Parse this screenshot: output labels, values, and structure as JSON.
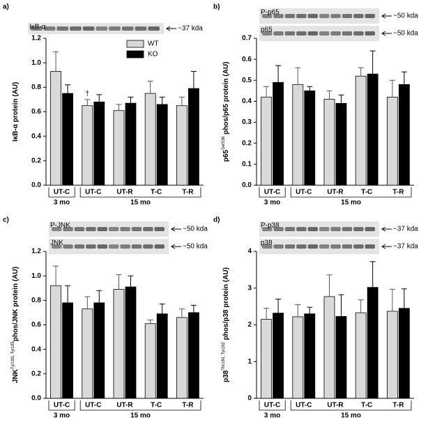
{
  "chart_data": [
    {
      "type": "bar",
      "panel_label": "a)",
      "ylabel": {
        "main": "IκB-α protein (AU)"
      },
      "categories": [
        "UT-C",
        "UT-C",
        "UT-R",
        "T-C",
        "T-R"
      ],
      "groups": [
        "3 mo",
        "15 mo"
      ],
      "series": [
        {
          "name": "WT",
          "color": "#d9d9d9",
          "values": [
            0.93,
            0.65,
            0.61,
            0.75,
            0.65
          ],
          "errors": [
            0.16,
            0.05,
            0.05,
            0.1,
            0.07
          ]
        },
        {
          "name": "KO",
          "color": "#000000",
          "values": [
            0.75,
            0.68,
            0.67,
            0.66,
            0.79
          ],
          "errors": [
            0.07,
            0.06,
            0.05,
            0.06,
            0.14
          ]
        }
      ],
      "ylim": [
        0,
        1.2
      ],
      "yticks": [
        {
          "value": 0,
          "label": "0.0"
        },
        0.2,
        0.4,
        0.6,
        0.8,
        {
          "value": 1,
          "label": "1.0"
        },
        1.2
      ],
      "legend": "top-right",
      "annotation": "†",
      "blot": {
        "labels": [
          "IκB-α"
        ],
        "sizes": [
          "~37 kda"
        ]
      }
    },
    {
      "type": "bar",
      "panel_label": "b)",
      "ylabel": {
        "main": "p65",
        "sup": "Ser536",
        "rest": " phos/p65 protein (AU)"
      },
      "categories": [
        "UT-C",
        "UT-C",
        "UT-R",
        "T-C",
        "T-R"
      ],
      "groups": [
        "3 mo",
        "15 mo"
      ],
      "series": [
        {
          "color": "#d9d9d9",
          "values": [
            0.42,
            0.48,
            0.41,
            0.52,
            0.42
          ],
          "errors": [
            0.05,
            0.08,
            0.04,
            0.04,
            0.08
          ]
        },
        {
          "color": "#000000",
          "values": [
            0.49,
            0.45,
            0.39,
            0.53,
            0.48
          ],
          "errors": [
            0.08,
            0.02,
            0.04,
            0.11,
            0.06
          ]
        }
      ],
      "ylim": [
        0,
        0.7
      ],
      "yticks": [
        {
          "value": 0,
          "label": "0.0"
        },
        0.1,
        0.2,
        0.3,
        0.4,
        0.5,
        0.6,
        0.7
      ],
      "blot": {
        "labels": [
          "P-p65",
          "p65"
        ],
        "sizes": [
          "~50 kda",
          "~50 kda"
        ]
      }
    },
    {
      "type": "bar",
      "panel_label": "c)",
      "ylabel": {
        "main": "JNK",
        "sup": "Tyr183, Tyr185",
        "rest": "phos/JNK protein (AU)"
      },
      "categories": [
        "UT-C",
        "UT-C",
        "UT-R",
        "T-C",
        "T-R"
      ],
      "groups": [
        "3 mo",
        "15 mo"
      ],
      "series": [
        {
          "color": "#d9d9d9",
          "values": [
            0.92,
            0.73,
            0.89,
            0.61,
            0.66
          ],
          "errors": [
            0.16,
            0.1,
            0.12,
            0.03,
            0.07
          ]
        },
        {
          "color": "#000000",
          "values": [
            0.78,
            0.78,
            0.91,
            0.69,
            0.7
          ],
          "errors": [
            0.14,
            0.1,
            0.09,
            0.08,
            0.06
          ]
        }
      ],
      "ylim": [
        0,
        1.2
      ],
      "yticks": [
        {
          "value": 0,
          "label": "0.0"
        },
        0.2,
        0.4,
        0.6,
        0.8,
        {
          "value": 1,
          "label": "1.0"
        },
        1.2
      ],
      "blot": {
        "labels": [
          "P-JNK",
          "JNK"
        ],
        "sizes": [
          "~50 kda",
          "~50 kda"
        ]
      }
    },
    {
      "type": "bar",
      "panel_label": "d)",
      "ylabel": {
        "main": "p38",
        "sup": "Thr180, Tyr182",
        "rest": " phos/p38 protein (AU)"
      },
      "categories": [
        "UT-C",
        "UT-C",
        "UT-R",
        "T-C",
        "T-R"
      ],
      "groups": [
        "3 mo",
        "15 mo"
      ],
      "series": [
        {
          "color": "#d9d9d9",
          "values": [
            2.15,
            2.22,
            2.77,
            2.33,
            2.37
          ],
          "errors": [
            0.3,
            0.33,
            0.59,
            0.35,
            0.6
          ]
        },
        {
          "color": "#000000",
          "values": [
            2.32,
            2.3,
            2.23,
            3.02,
            2.45
          ],
          "errors": [
            0.38,
            0.18,
            0.59,
            0.7,
            0.53
          ]
        }
      ],
      "ylim": [
        0,
        4
      ],
      "yticks": [
        0,
        1,
        2,
        3,
        4
      ],
      "blot": {
        "labels": [
          "P-p38",
          "p38"
        ],
        "sizes": [
          "~37 kda",
          "~37 kda"
        ]
      }
    }
  ]
}
